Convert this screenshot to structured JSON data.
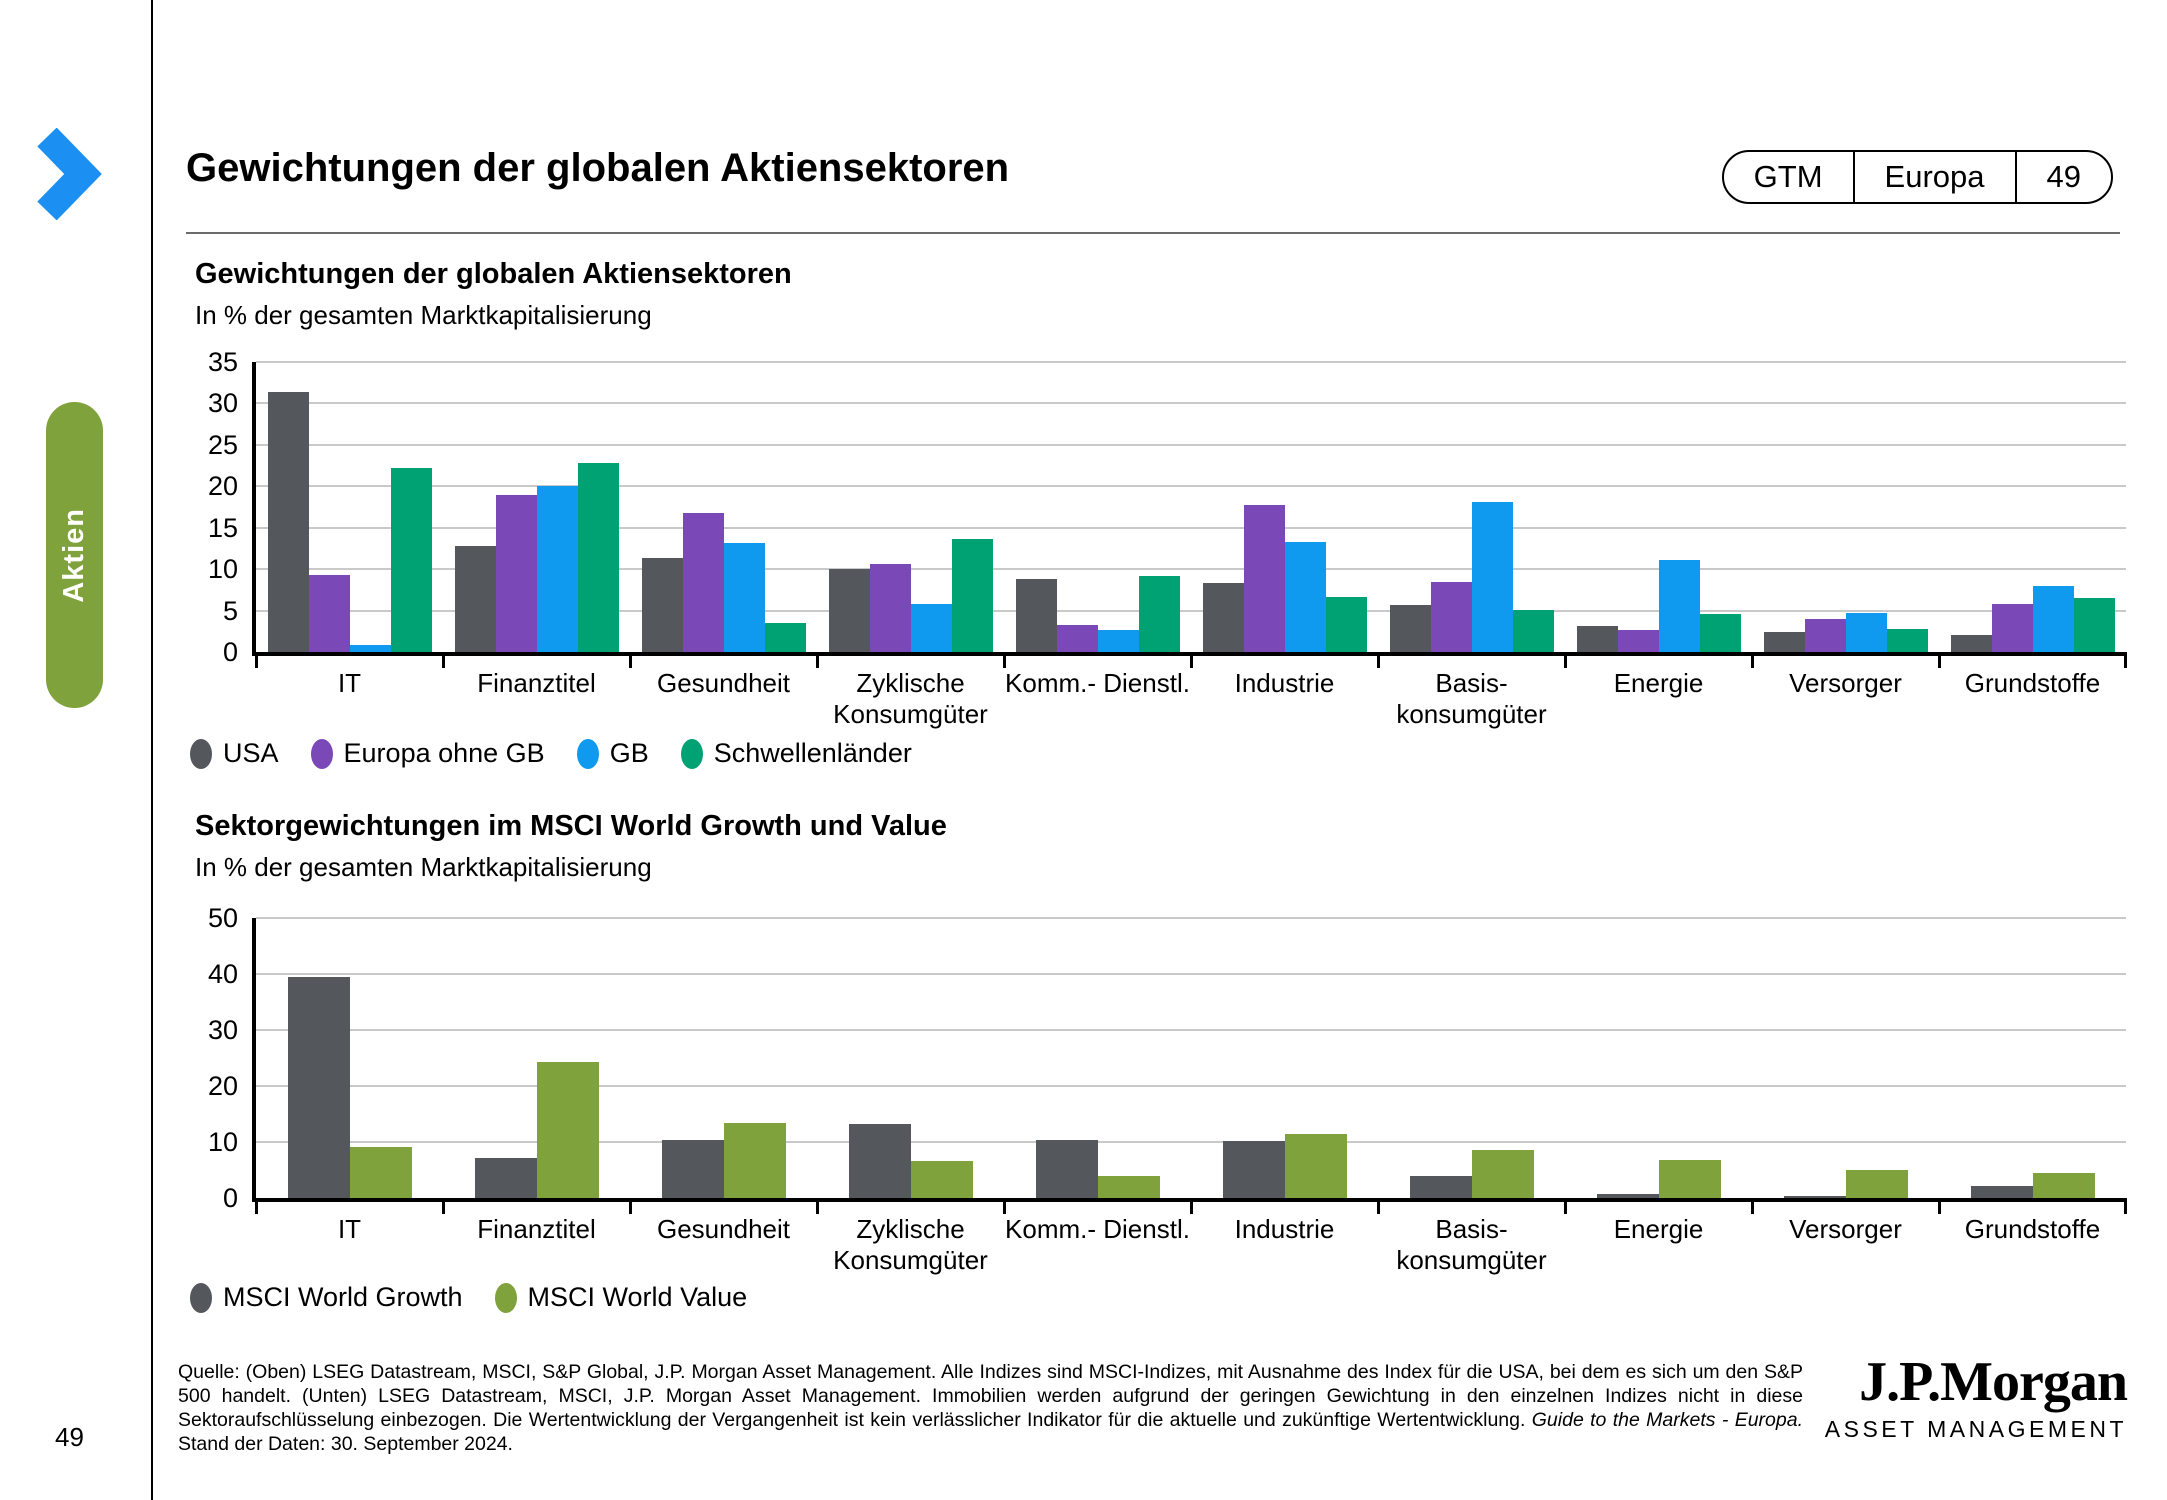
{
  "sidebar": {
    "tab": "Aktien"
  },
  "header": {
    "title": "Gewichtungen der globalen Aktiensektoren",
    "badge": {
      "gtm": "GTM",
      "region": "Europa",
      "page": "49"
    }
  },
  "chart_data": [
    {
      "type": "bar",
      "title": "Gewichtungen der globalen Aktiensektoren",
      "subtitle": "In % der gesamten Marktkapitalisierung",
      "categories": [
        "IT",
        "Finanztitel",
        "Gesundheit",
        "Zyklische\nKonsumgüter",
        "Komm.- Dienstl.",
        "Industrie",
        "Basis-\nkonsumgüter",
        "Energie",
        "Versorger",
        "Grundstoffe"
      ],
      "series": [
        {
          "name": "USA",
          "color": "#54585C",
          "values": [
            31.4,
            12.8,
            11.4,
            10.0,
            8.8,
            8.3,
            5.7,
            3.1,
            2.4,
            2.1
          ]
        },
        {
          "name": "Europa ohne GB",
          "color": "#7B48B8",
          "values": [
            9.3,
            19.0,
            16.8,
            10.6,
            3.3,
            17.8,
            8.4,
            2.6,
            4.0,
            5.8
          ]
        },
        {
          "name": "GB",
          "color": "#0F9AF0",
          "values": [
            0.9,
            20.0,
            13.1,
            5.8,
            2.6,
            13.3,
            18.1,
            11.1,
            4.7,
            8.0
          ]
        },
        {
          "name": "Schwellenländer",
          "color": "#00A173",
          "values": [
            22.2,
            22.8,
            3.5,
            13.7,
            9.2,
            6.6,
            5.1,
            4.6,
            2.8,
            6.5
          ]
        }
      ],
      "ylim": [
        0,
        35
      ],
      "yticks": [
        0,
        5,
        10,
        15,
        20,
        25,
        30,
        35
      ],
      "grid": true,
      "legend_position": "bottom"
    },
    {
      "type": "bar",
      "title": "Sektorgewichtungen im MSCI World Growth und Value",
      "subtitle": "In % der gesamten Marktkapitalisierung",
      "categories": [
        "IT",
        "Finanztitel",
        "Gesundheit",
        "Zyklische\nKonsumgüter",
        "Komm.- Dienstl.",
        "Industrie",
        "Basis-\nkonsumgüter",
        "Energie",
        "Versorger",
        "Grundstoffe"
      ],
      "series": [
        {
          "name": "MSCI World Growth",
          "color": "#54585C",
          "values": [
            39.5,
            7.1,
            10.3,
            13.2,
            10.4,
            10.2,
            4.0,
            0.7,
            0.3,
            2.1
          ]
        },
        {
          "name": "MSCI World Value",
          "color": "#80A23C",
          "values": [
            9.1,
            24.3,
            13.4,
            6.6,
            4.0,
            11.4,
            8.6,
            6.8,
            5.0,
            4.5
          ]
        }
      ],
      "ylim": [
        0,
        50
      ],
      "yticks": [
        0,
        10,
        20,
        30,
        40,
        50
      ],
      "grid": true,
      "legend_position": "bottom"
    }
  ],
  "footer": {
    "page_number": "49",
    "source_prefix": "Quelle: (Oben) LSEG Datastream, MSCI, S&P Global, J.P. Morgan Asset Management. Alle Indizes sind MSCI-Indizes, mit Ausnahme des Index für die USA, bei dem es sich um den S&P 500 handelt. (Unten) LSEG Datastream, MSCI, J.P. Morgan Asset Management. Immobilien werden aufgrund der geringen Gewichtung in den einzelnen Indizes nicht in diese Sektoraufschlüsselung einbezogen. Die Wertentwicklung der Vergangenheit ist kein verlässlicher Indikator für die aktuelle und zukünftige Wertentwicklung. ",
    "source_italic": "Guide to the Markets - Europa.",
    "source_suffix": " Stand der Daten: 30. September 2024."
  },
  "logo": {
    "name": "J.P.Morgan",
    "subtitle": "ASSET MANAGEMENT"
  }
}
